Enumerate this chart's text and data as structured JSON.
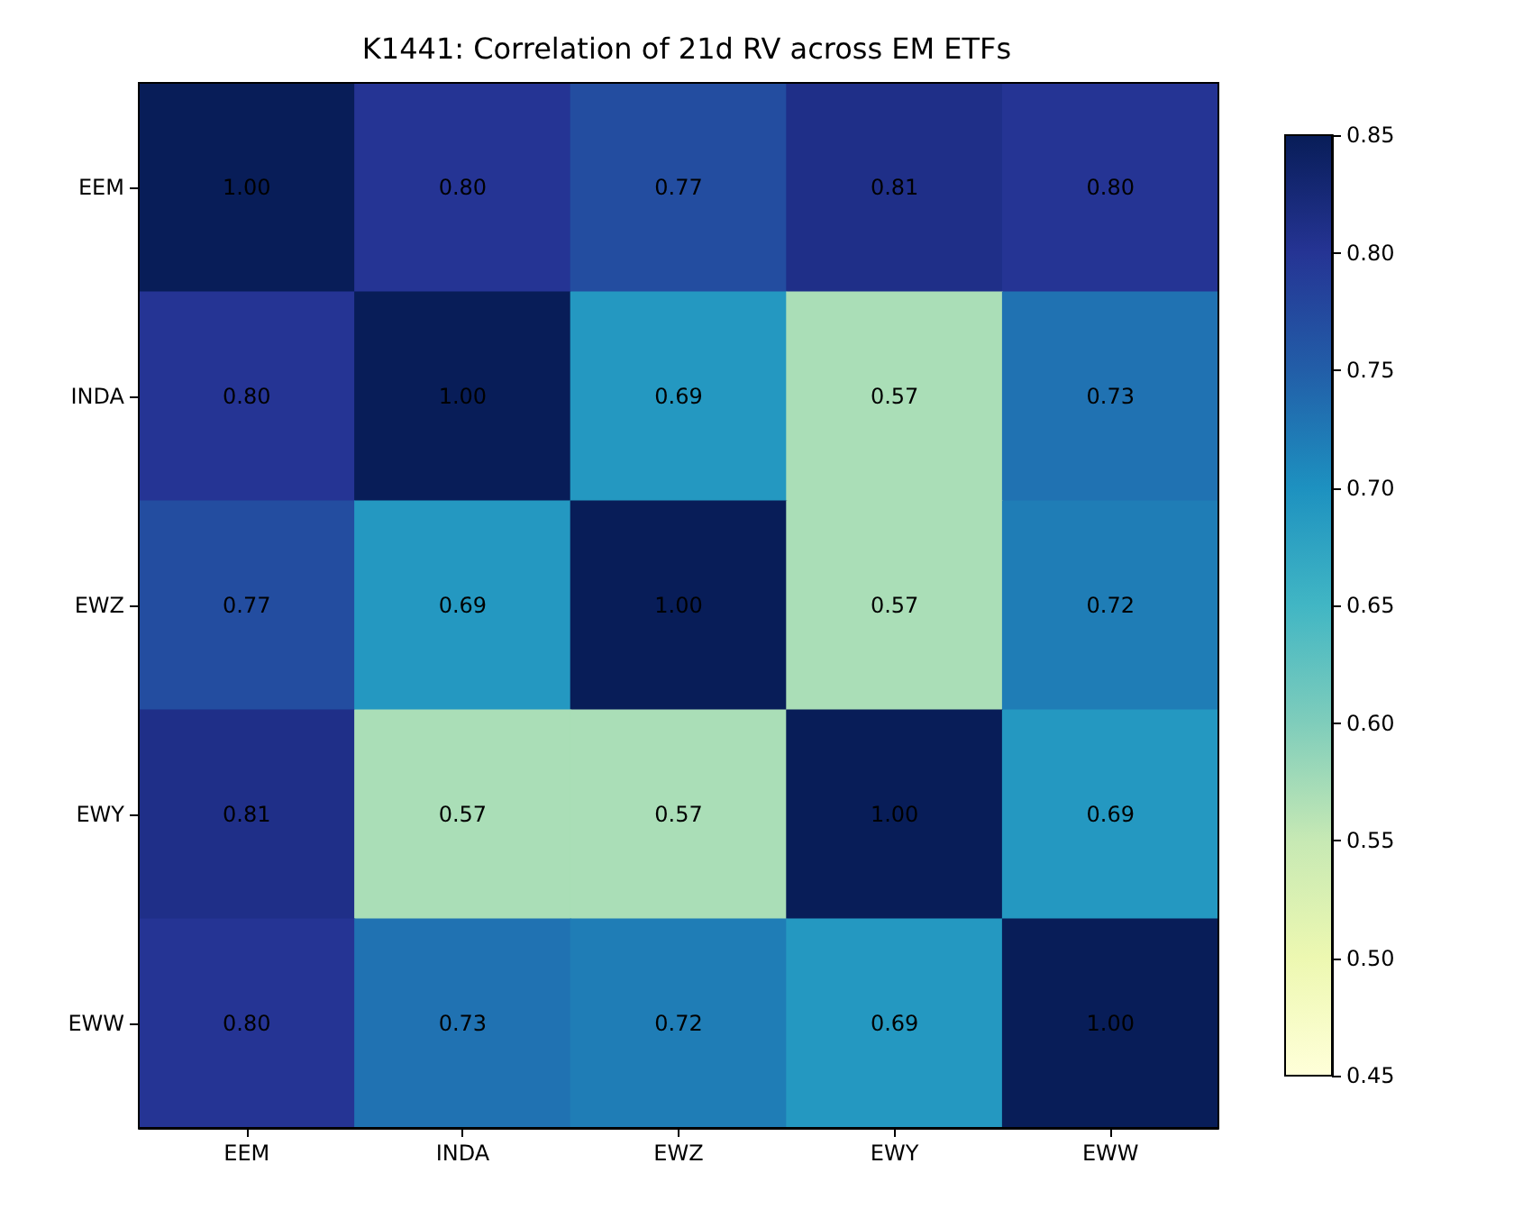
{
  "chart_data": {
    "type": "heatmap",
    "title": "K1441: Correlation of 21d RV across EM ETFs",
    "categories": [
      "EEM",
      "INDA",
      "EWZ",
      "EWY",
      "EWW"
    ],
    "y_categories": [
      "EEM",
      "INDA",
      "EWZ",
      "EWY",
      "EWW"
    ],
    "cells": [
      [
        1.0,
        0.8,
        0.77,
        0.81,
        0.8
      ],
      [
        0.8,
        1.0,
        0.69,
        0.57,
        0.73
      ],
      [
        0.77,
        0.69,
        1.0,
        0.57,
        0.72
      ],
      [
        0.81,
        0.57,
        0.57,
        1.0,
        0.69
      ],
      [
        0.8,
        0.73,
        0.72,
        0.69,
        1.0
      ]
    ],
    "cell_labels": [
      [
        "1.00",
        "0.80",
        "0.77",
        "0.81",
        "0.80"
      ],
      [
        "0.80",
        "1.00",
        "0.69",
        "0.57",
        "0.73"
      ],
      [
        "0.77",
        "0.69",
        "1.00",
        "0.57",
        "0.72"
      ],
      [
        "0.81",
        "0.57",
        "0.57",
        "1.00",
        "0.69"
      ],
      [
        "0.80",
        "0.73",
        "0.72",
        "0.69",
        "1.00"
      ]
    ],
    "clim": [
      0.45,
      0.85
    ],
    "cticks": [
      0.45,
      {
        "value": 0.5,
        "label": "0.50"
      },
      0.55,
      {
        "value": 0.6,
        "label": "0.60"
      },
      0.65,
      {
        "value": 0.7,
        "label": "0.70"
      },
      0.75,
      {
        "value": 0.8,
        "label": "0.80"
      },
      0.85
    ]
  }
}
